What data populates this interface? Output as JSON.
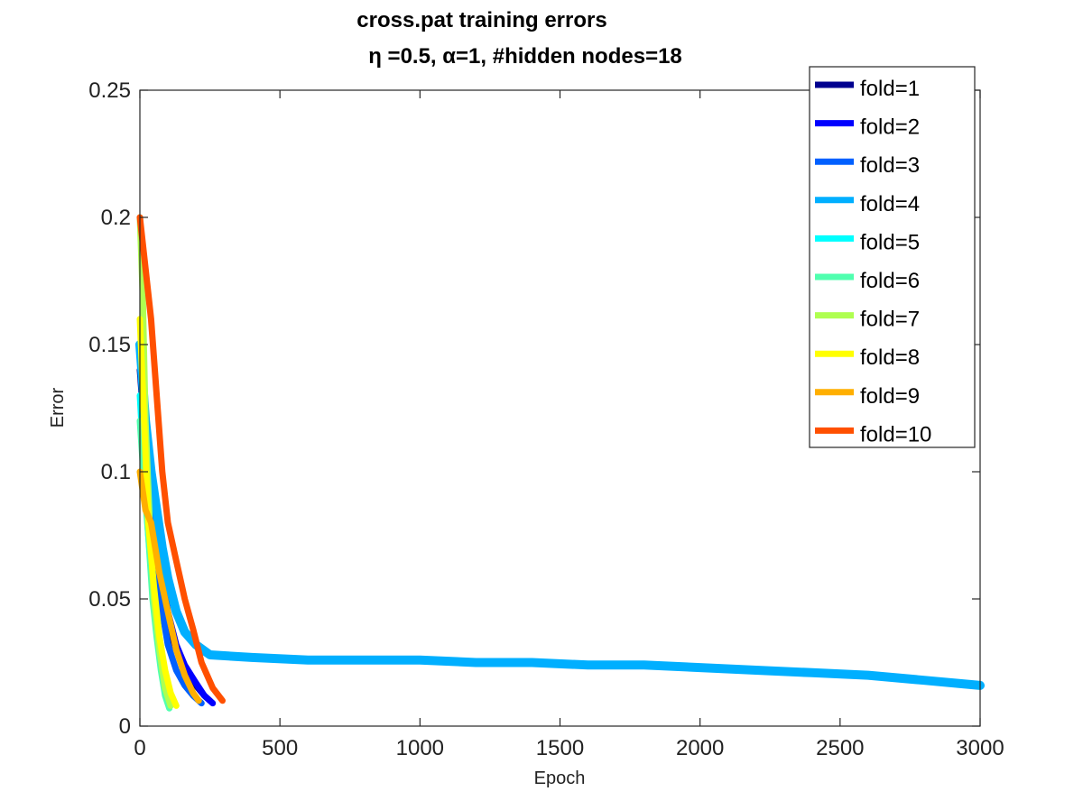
{
  "chart_data": {
    "type": "line",
    "title": "cross.pat training errors",
    "subtitle": "η =0.5,    α=1, #hidden nodes=18",
    "xlabel": "Epoch",
    "ylabel": "Error",
    "xlim": [
      0,
      3000
    ],
    "ylim": [
      0,
      0.25
    ],
    "xticks": [
      "0",
      "500",
      "1000",
      "1500",
      "2000",
      "2500",
      "3000"
    ],
    "yticks": [
      "0",
      "0.05",
      "0.1",
      "0.15",
      "0.2",
      "0.25"
    ],
    "grid": false,
    "legend_position": "top-right",
    "series": [
      {
        "name": "fold=1",
        "color": "#00008f",
        "x": [
          0,
          20,
          40,
          60,
          80,
          100,
          130,
          160,
          200,
          230,
          250
        ],
        "y": [
          0.14,
          0.11,
          0.09,
          0.07,
          0.05,
          0.04,
          0.03,
          0.022,
          0.016,
          0.012,
          0.01
        ]
      },
      {
        "name": "fold=2",
        "color": "#0000ff",
        "x": [
          0,
          20,
          40,
          60,
          80,
          100,
          130,
          160,
          200,
          230,
          260
        ],
        "y": [
          0.15,
          0.12,
          0.1,
          0.08,
          0.06,
          0.045,
          0.032,
          0.024,
          0.017,
          0.012,
          0.009
        ]
      },
      {
        "name": "fold=3",
        "color": "#0060ff",
        "x": [
          0,
          20,
          40,
          60,
          80,
          100,
          130,
          160,
          190,
          220
        ],
        "y": [
          0.15,
          0.12,
          0.09,
          0.065,
          0.045,
          0.032,
          0.022,
          0.016,
          0.012,
          0.009
        ]
      },
      {
        "name": "fold=4",
        "color": "#00afff",
        "x": [
          0,
          20,
          40,
          60,
          80,
          100,
          130,
          160,
          200,
          250,
          400,
          600,
          800,
          1000,
          1200,
          1400,
          1600,
          1800,
          2000,
          2200,
          2400,
          2600,
          2800,
          3000
        ],
        "y": [
          0.15,
          0.12,
          0.1,
          0.085,
          0.07,
          0.058,
          0.045,
          0.037,
          0.032,
          0.028,
          0.027,
          0.026,
          0.026,
          0.026,
          0.025,
          0.025,
          0.024,
          0.024,
          0.023,
          0.022,
          0.021,
          0.02,
          0.018,
          0.016
        ]
      },
      {
        "name": "fold=5",
        "color": "#00ffff",
        "x": [
          0,
          15,
          30,
          45,
          60,
          75,
          90,
          110
        ],
        "y": [
          0.13,
          0.1,
          0.075,
          0.055,
          0.04,
          0.025,
          0.015,
          0.008
        ]
      },
      {
        "name": "fold=6",
        "color": "#50ffaf",
        "x": [
          0,
          15,
          30,
          45,
          60,
          75,
          90,
          105
        ],
        "y": [
          0.12,
          0.095,
          0.075,
          0.05,
          0.035,
          0.022,
          0.012,
          0.007
        ]
      },
      {
        "name": "fold=7",
        "color": "#afff50",
        "x": [
          0,
          10,
          20,
          35,
          50,
          70,
          90,
          110
        ],
        "y": [
          0.2,
          0.17,
          0.12,
          0.08,
          0.05,
          0.03,
          0.015,
          0.008
        ]
      },
      {
        "name": "fold=8",
        "color": "#ffff00",
        "x": [
          0,
          15,
          30,
          50,
          70,
          90,
          110,
          130
        ],
        "y": [
          0.16,
          0.12,
          0.08,
          0.055,
          0.035,
          0.022,
          0.013,
          0.008
        ]
      },
      {
        "name": "fold=9",
        "color": "#ffaf00",
        "x": [
          0,
          20,
          40,
          70,
          100,
          130,
          160,
          190,
          210
        ],
        "y": [
          0.1,
          0.085,
          0.08,
          0.06,
          0.045,
          0.03,
          0.02,
          0.013,
          0.01
        ]
      },
      {
        "name": "fold=10",
        "color": "#ff5000",
        "x": [
          0,
          20,
          40,
          60,
          80,
          100,
          130,
          160,
          190,
          220,
          260,
          295
        ],
        "y": [
          0.2,
          0.18,
          0.16,
          0.13,
          0.1,
          0.08,
          0.065,
          0.05,
          0.038,
          0.025,
          0.015,
          0.01
        ]
      }
    ]
  }
}
